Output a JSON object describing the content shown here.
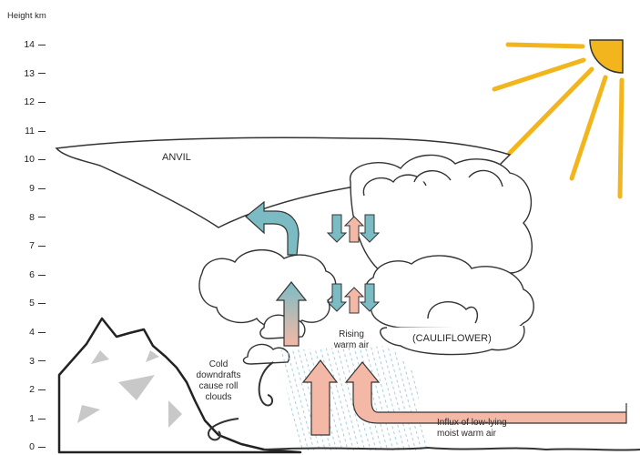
{
  "axis": {
    "title": "Height km",
    "ticks": [
      "14",
      "13",
      "12",
      "11",
      "10",
      "9",
      "8",
      "7",
      "6",
      "5",
      "4",
      "3",
      "2",
      "1",
      "0"
    ]
  },
  "labels": {
    "anvil": "ANVIL",
    "cauliflower": "(CAULIFLOWER)",
    "rising_1": "Rising",
    "rising_2": "warm air",
    "cold_1": "Cold",
    "cold_2": "downdrafts",
    "cold_3": "cause roll",
    "cold_4": "clouds",
    "influx_1": "Influx of low-lying",
    "influx_2": "moist warm air"
  },
  "colors": {
    "sun": "#f2b51d",
    "updraft": "#f4b8a6",
    "downdraft": "#7bbcc4",
    "rain": "#9ec9d8",
    "outline": "#333333",
    "mountain_shade": "#c8c8c8"
  },
  "icons": [
    "sun-icon",
    "mountain",
    "cloud-outline",
    "arrow-up",
    "arrow-down"
  ]
}
